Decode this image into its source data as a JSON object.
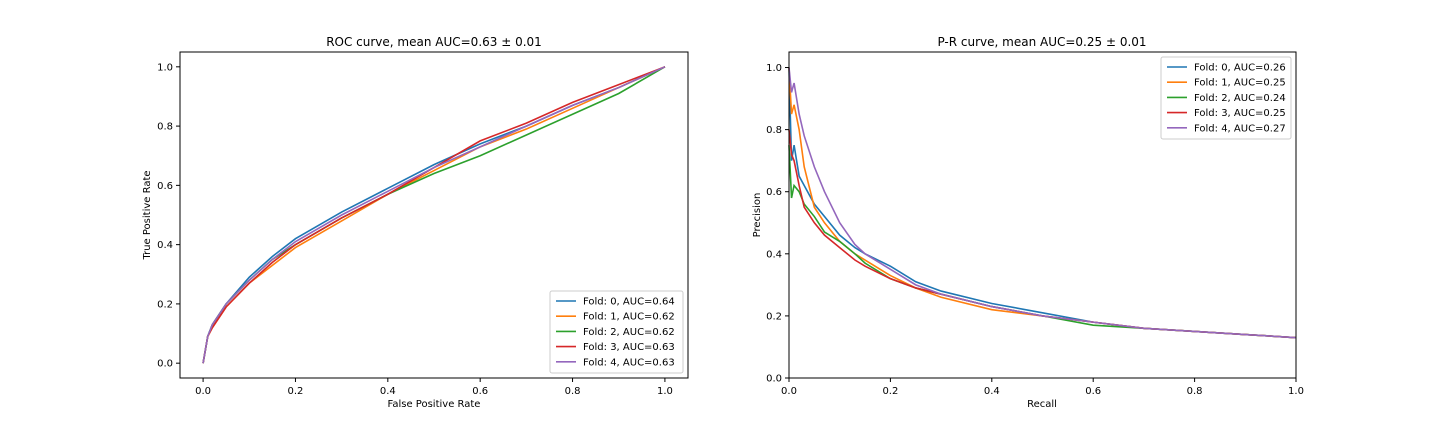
{
  "chart_data": [
    {
      "type": "line",
      "title": "ROC curve, mean AUC=0.63 ± 0.01",
      "xlabel": "False Positive Rate",
      "ylabel": "True Positive Rate",
      "xlim": [
        -0.05,
        1.05
      ],
      "ylim": [
        -0.05,
        1.05
      ],
      "xticks": [
        "0.0",
        "0.2",
        "0.4",
        "0.6",
        "0.8",
        "1.0"
      ],
      "yticks": [
        "0.0",
        "0.2",
        "0.4",
        "0.6",
        "0.8",
        "1.0"
      ],
      "grid": false,
      "legend_position": "lower-right",
      "series": [
        {
          "name": "Fold: 0, AUC=0.64",
          "color": "#1f77b4",
          "x": [
            0,
            0.01,
            0.02,
            0.05,
            0.1,
            0.15,
            0.2,
            0.3,
            0.4,
            0.5,
            0.6,
            0.7,
            0.8,
            0.9,
            1.0
          ],
          "y": [
            0,
            0.09,
            0.13,
            0.2,
            0.29,
            0.36,
            0.42,
            0.51,
            0.59,
            0.67,
            0.74,
            0.8,
            0.87,
            0.93,
            1.0
          ]
        },
        {
          "name": "Fold: 1, AUC=0.62",
          "color": "#ff7f0e",
          "x": [
            0,
            0.01,
            0.02,
            0.05,
            0.1,
            0.15,
            0.2,
            0.3,
            0.4,
            0.5,
            0.6,
            0.7,
            0.8,
            0.9,
            1.0
          ],
          "y": [
            0,
            0.09,
            0.12,
            0.19,
            0.27,
            0.33,
            0.39,
            0.48,
            0.57,
            0.65,
            0.73,
            0.79,
            0.86,
            0.93,
            1.0
          ]
        },
        {
          "name": "Fold: 2, AUC=0.62",
          "color": "#2ca02c",
          "x": [
            0,
            0.01,
            0.02,
            0.05,
            0.1,
            0.15,
            0.2,
            0.3,
            0.4,
            0.5,
            0.6,
            0.7,
            0.8,
            0.9,
            1.0
          ],
          "y": [
            0,
            0.09,
            0.13,
            0.2,
            0.28,
            0.35,
            0.4,
            0.49,
            0.57,
            0.64,
            0.7,
            0.77,
            0.84,
            0.91,
            1.0
          ]
        },
        {
          "name": "Fold: 3, AUC=0.63",
          "color": "#d62728",
          "x": [
            0,
            0.01,
            0.02,
            0.05,
            0.1,
            0.15,
            0.2,
            0.3,
            0.4,
            0.5,
            0.6,
            0.7,
            0.8,
            0.9,
            1.0
          ],
          "y": [
            0,
            0.09,
            0.12,
            0.19,
            0.27,
            0.34,
            0.4,
            0.49,
            0.57,
            0.66,
            0.75,
            0.81,
            0.88,
            0.94,
            1.0
          ]
        },
        {
          "name": "Fold: 4, AUC=0.63",
          "color": "#9467bd",
          "x": [
            0,
            0.01,
            0.02,
            0.05,
            0.1,
            0.15,
            0.2,
            0.3,
            0.4,
            0.5,
            0.6,
            0.7,
            0.8,
            0.9,
            1.0
          ],
          "y": [
            0,
            0.09,
            0.13,
            0.2,
            0.28,
            0.35,
            0.41,
            0.5,
            0.58,
            0.66,
            0.73,
            0.8,
            0.87,
            0.93,
            1.0
          ]
        }
      ]
    },
    {
      "type": "line",
      "title": "P-R curve, mean AUC=0.25 ± 0.01",
      "xlabel": "Recall",
      "ylabel": "Precision",
      "xlim": [
        0,
        1
      ],
      "ylim": [
        0,
        1.05
      ],
      "xticks": [
        "0.0",
        "0.2",
        "0.4",
        "0.6",
        "0.8",
        "1.0"
      ],
      "yticks": [
        "0.0",
        "0.2",
        "0.4",
        "0.6",
        "0.8",
        "1.0"
      ],
      "grid": false,
      "legend_position": "upper-right",
      "series": [
        {
          "name": "Fold: 0, AUC=0.26",
          "color": "#1f77b4",
          "x": [
            0,
            0.005,
            0.01,
            0.02,
            0.03,
            0.05,
            0.07,
            0.1,
            0.13,
            0.15,
            0.2,
            0.25,
            0.3,
            0.4,
            0.5,
            0.6,
            0.7,
            0.8,
            0.9,
            1.0
          ],
          "y": [
            1.0,
            0.7,
            0.75,
            0.65,
            0.62,
            0.56,
            0.52,
            0.46,
            0.42,
            0.4,
            0.36,
            0.31,
            0.28,
            0.24,
            0.21,
            0.18,
            0.16,
            0.15,
            0.14,
            0.13
          ]
        },
        {
          "name": "Fold: 1, AUC=0.25",
          "color": "#ff7f0e",
          "x": [
            0,
            0.005,
            0.01,
            0.02,
            0.03,
            0.05,
            0.07,
            0.1,
            0.13,
            0.15,
            0.2,
            0.25,
            0.3,
            0.4,
            0.5,
            0.6,
            0.7,
            0.8,
            0.9,
            1.0
          ],
          "y": [
            1.0,
            0.85,
            0.88,
            0.8,
            0.68,
            0.55,
            0.5,
            0.44,
            0.4,
            0.38,
            0.33,
            0.29,
            0.26,
            0.22,
            0.2,
            0.18,
            0.16,
            0.15,
            0.14,
            0.13
          ]
        },
        {
          "name": "Fold: 2, AUC=0.24",
          "color": "#2ca02c",
          "x": [
            0,
            0.005,
            0.01,
            0.02,
            0.03,
            0.05,
            0.07,
            0.1,
            0.13,
            0.15,
            0.2,
            0.25,
            0.3,
            0.4,
            0.5,
            0.6,
            0.7,
            0.8,
            0.9,
            1.0
          ],
          "y": [
            0.75,
            0.58,
            0.62,
            0.6,
            0.56,
            0.52,
            0.47,
            0.44,
            0.4,
            0.37,
            0.32,
            0.29,
            0.27,
            0.23,
            0.2,
            0.17,
            0.16,
            0.15,
            0.14,
            0.13
          ]
        },
        {
          "name": "Fold: 3, AUC=0.25",
          "color": "#d62728",
          "x": [
            0,
            0.005,
            0.01,
            0.02,
            0.03,
            0.05,
            0.07,
            0.1,
            0.13,
            0.15,
            0.2,
            0.25,
            0.3,
            0.4,
            0.5,
            0.6,
            0.7,
            0.8,
            0.9,
            1.0
          ],
          "y": [
            0.8,
            0.72,
            0.7,
            0.62,
            0.55,
            0.5,
            0.46,
            0.42,
            0.38,
            0.36,
            0.32,
            0.29,
            0.27,
            0.23,
            0.2,
            0.18,
            0.16,
            0.15,
            0.14,
            0.13
          ]
        },
        {
          "name": "Fold: 4, AUC=0.27",
          "color": "#9467bd",
          "x": [
            0,
            0.005,
            0.01,
            0.02,
            0.03,
            0.05,
            0.07,
            0.1,
            0.13,
            0.15,
            0.2,
            0.25,
            0.3,
            0.4,
            0.5,
            0.6,
            0.7,
            0.8,
            0.9,
            1.0
          ],
          "y": [
            1.0,
            0.92,
            0.95,
            0.85,
            0.78,
            0.68,
            0.6,
            0.5,
            0.43,
            0.4,
            0.35,
            0.3,
            0.27,
            0.23,
            0.2,
            0.18,
            0.16,
            0.15,
            0.14,
            0.13
          ]
        }
      ]
    }
  ]
}
